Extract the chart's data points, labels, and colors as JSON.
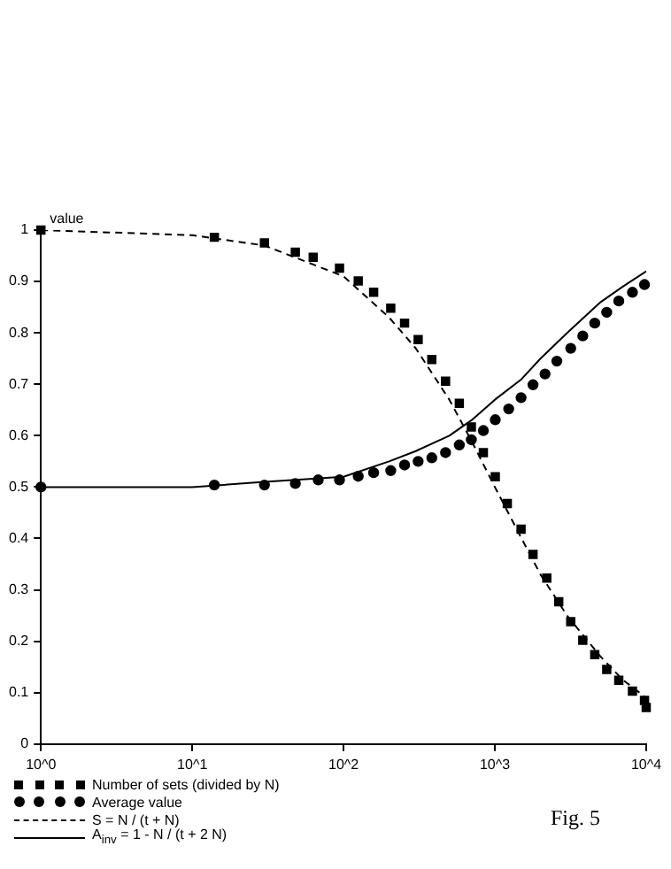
{
  "chart_data": {
    "type": "scatter",
    "ylabel": "value",
    "annotations": [
      "Fig. 5"
    ],
    "log": "x",
    "xlim": [
      1,
      10000
    ],
    "xticks": [
      {
        "value": 1,
        "label": "10^0"
      },
      {
        "value": 10,
        "label": "10^1"
      },
      {
        "value": 100,
        "label": "10^2"
      },
      {
        "value": 1000,
        "label": "10^3"
      },
      {
        "value": 10000,
        "label": "10^4"
      }
    ],
    "ylim": [
      0,
      1
    ],
    "yticks": [
      0,
      0.1,
      0.2,
      0.3,
      0.4,
      0.5,
      0.6,
      0.7,
      0.8,
      0.9,
      1
    ],
    "grid": false,
    "legend": "bottom left",
    "series": [
      {
        "name": "Number of sets (divided by N)",
        "marker": "square",
        "color": "#000000",
        "x": [
          1,
          14,
          30,
          48,
          63,
          94,
          125,
          158,
          205,
          253,
          311,
          383,
          472,
          582,
          699,
          839,
          1006,
          1208,
          1489,
          1786,
          2203,
          2642,
          3171,
          3808,
          4571,
          5483,
          6587,
          8110,
          9743,
          10000
        ],
        "values": [
          1.0,
          0.986,
          0.975,
          0.957,
          0.947,
          0.926,
          0.901,
          0.879,
          0.848,
          0.819,
          0.787,
          0.748,
          0.706,
          0.663,
          0.617,
          0.567,
          0.52,
          0.468,
          0.418,
          0.369,
          0.323,
          0.277,
          0.238,
          0.202,
          0.174,
          0.145,
          0.124,
          0.103,
          0.085,
          0.071
        ]
      },
      {
        "name": "Average value",
        "marker": "circle",
        "color": "#000000",
        "x": [
          1,
          14,
          30,
          48,
          68,
          94,
          125,
          158,
          205,
          253,
          311,
          383,
          472,
          582,
          699,
          839,
          1006,
          1234,
          1489,
          1786,
          2145,
          2567,
          3171,
          3808,
          4571,
          5483,
          6587,
          8110,
          9743
        ],
        "values": [
          0.5,
          0.504,
          0.504,
          0.507,
          0.514,
          0.514,
          0.521,
          0.528,
          0.532,
          0.543,
          0.55,
          0.557,
          0.567,
          0.582,
          0.592,
          0.61,
          0.631,
          0.652,
          0.674,
          0.699,
          0.72,
          0.745,
          0.77,
          0.794,
          0.819,
          0.84,
          0.862,
          0.879,
          0.894
        ]
      },
      {
        "name": "S = N / (t + N)",
        "type": "line",
        "marker": "none",
        "line_style": "dashed",
        "color": "#000000",
        "x": [
          1,
          10,
          30,
          100,
          200,
          300,
          500,
          700,
          1000,
          1500,
          2000,
          3000,
          5000,
          7000,
          10000
        ],
        "values": [
          1.0,
          0.99,
          0.97,
          0.91,
          0.83,
          0.77,
          0.67,
          0.59,
          0.5,
          0.4,
          0.33,
          0.25,
          0.17,
          0.125,
          0.09
        ]
      },
      {
        "name": "A$_{inv}$ = 1 - N / (t + 2 N)",
        "type": "line",
        "marker": "none",
        "line_style": "solid",
        "color": "#000000",
        "x": [
          1,
          10,
          30,
          100,
          200,
          300,
          500,
          700,
          1000,
          1500,
          2000,
          3000,
          5000,
          7000,
          10000
        ],
        "values": [
          0.5,
          0.5,
          0.51,
          0.52,
          0.55,
          0.57,
          0.6,
          0.63,
          0.67,
          0.71,
          0.75,
          0.8,
          0.86,
          0.89,
          0.92
        ]
      }
    ]
  }
}
